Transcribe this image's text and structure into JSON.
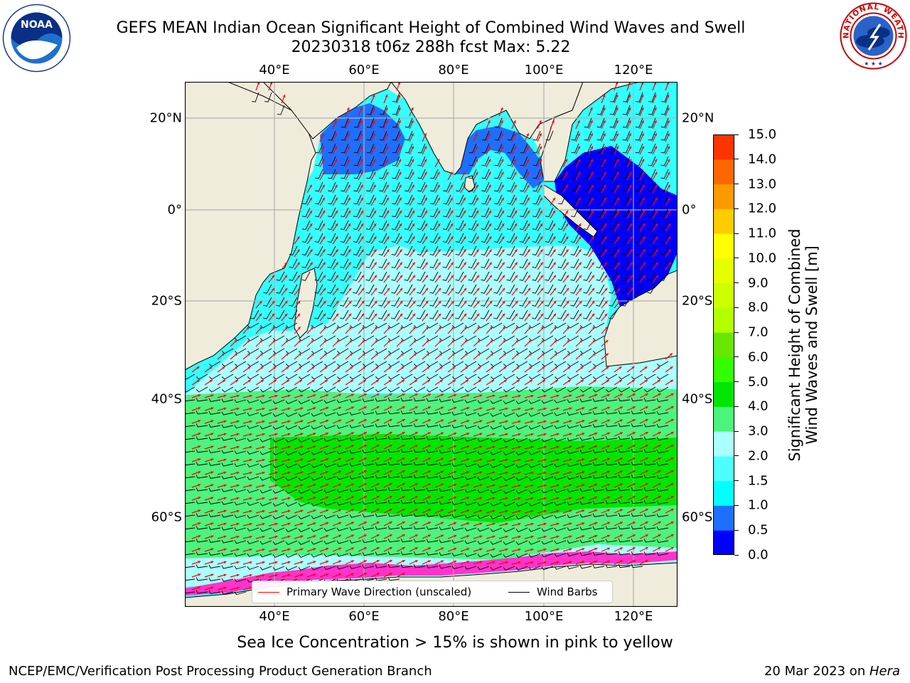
{
  "title": {
    "line1": "GEFS MEAN Indian Ocean Significant Height of Combined Wind Waves and Swell",
    "line2": "20230318 t06z 288h fcst   Max: 5.22"
  },
  "logos": {
    "left": {
      "icon": "noaa-logo",
      "text": "NOAA"
    },
    "right": {
      "icon": "nws-logo",
      "text": "NATIONAL WEATHER SERVICE"
    }
  },
  "map": {
    "lon_labels": [
      "40°E",
      "60°E",
      "80°E",
      "100°E",
      "120°E"
    ],
    "lat_labels": [
      "20°N",
      "0°",
      "20°S",
      "40°S",
      "60°S"
    ],
    "lon_range": [
      20,
      130
    ],
    "lat_range": [
      -73,
      27
    ],
    "colors": {
      "land": "#efecdc",
      "ocean_very_calm": "#0000ff",
      "ocean_calm": "#1f6fff",
      "ocean_moderate": "#33ffff",
      "ocean_light": "#aaffff",
      "ocean_rough": "#4cf37c",
      "ocean_very_rough": "#00e600",
      "sea_ice": "#ff33cc",
      "wave_arrows": "#ff0000",
      "wind_barbs": "#000000",
      "grid": "#b0b0b0"
    }
  },
  "legend": {
    "wave_direction_label": "Primary Wave Direction (unscaled)",
    "wind_barbs_label": "Wind Barbs"
  },
  "colorbar": {
    "label": "Significant Height of Combined Wind Waves and Swell [m]",
    "ticks": [
      "0.0",
      "0.5",
      "1.0",
      "1.5",
      "2.0",
      "3.0",
      "4.0",
      "5.0",
      "6.0",
      "7.0",
      "8.0",
      "9.0",
      "10.0",
      "11.0",
      "12.0",
      "13.0",
      "14.0",
      "15.0"
    ],
    "colors": [
      "#0000ff",
      "#1f6fff",
      "#00ffff",
      "#4dffff",
      "#aaffff",
      "#4cf37c",
      "#00e600",
      "#33ff00",
      "#66e600",
      "#b3ff00",
      "#ccff00",
      "#e6ff00",
      "#ffff00",
      "#ffcc00",
      "#ff9900",
      "#ff6600",
      "#ff3300"
    ]
  },
  "note": "Sea Ice Concentration > 15% is shown in pink to yellow",
  "footer": {
    "left": "NCEP/EMC/Verification Post Processing Product Generation Branch",
    "date": "20 Mar 2023 on ",
    "host": "Hera"
  }
}
